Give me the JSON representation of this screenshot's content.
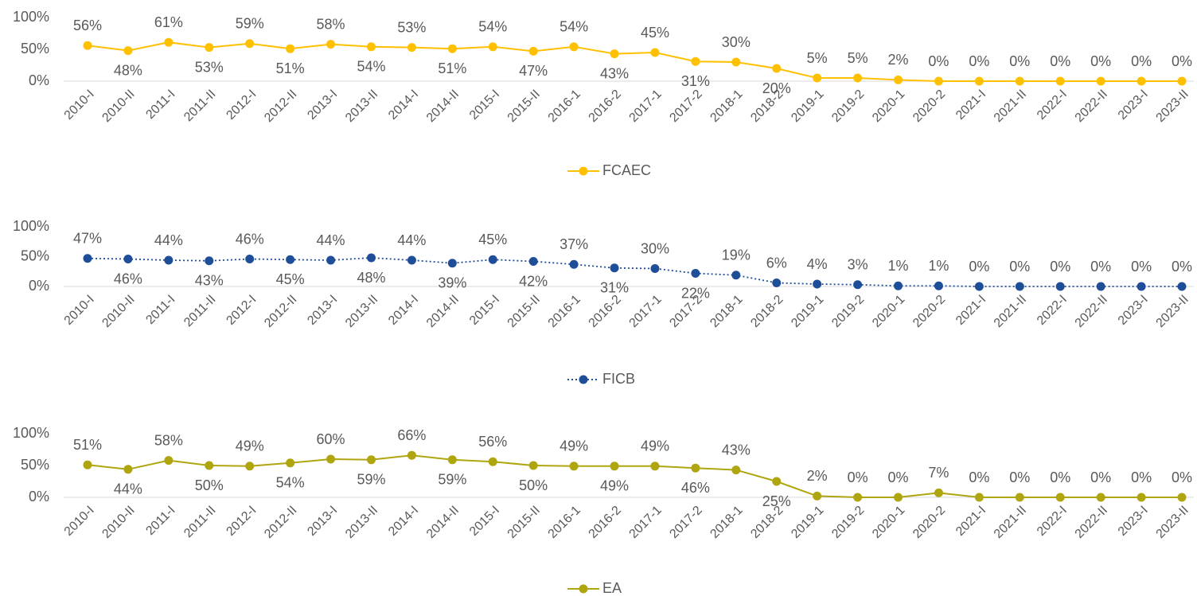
{
  "chart_data": [
    {
      "type": "line",
      "categories": [
        "2010-I",
        "2010-II",
        "2011-I",
        "2011-II",
        "2012-I",
        "2012-II",
        "2013-I",
        "2013-II",
        "2014-I",
        "2014-II",
        "2015-I",
        "2015-II",
        "2016-1",
        "2016-2",
        "2017-1",
        "2017-2",
        "2018-1",
        "2018-2",
        "2019-1",
        "2019-2",
        "2020-1",
        "2020-2",
        "2021-I",
        "2021-II",
        "2022-I",
        "2022-II",
        "2023-I",
        "2023-II"
      ],
      "series": [
        {
          "name": "FCAEC",
          "color": "#FFC000",
          "line_style": "solid",
          "values": [
            56,
            48,
            61,
            53,
            59,
            51,
            58,
            54,
            53,
            51,
            54,
            47,
            54,
            43,
            45,
            31,
            30,
            20,
            5,
            5,
            2,
            0,
            0,
            0,
            0,
            0,
            0,
            0
          ],
          "value_labels": [
            "56%",
            "48%",
            "61%",
            "53%",
            "59%",
            "51%",
            "58%",
            "54%",
            "53%",
            "51%",
            "54%",
            "47%",
            "54%",
            "43%",
            "45%",
            "31%",
            "30%",
            "20%",
            "5%",
            "5%",
            "2%",
            "0%",
            "0%",
            "0%",
            "0%",
            "0%",
            "0%",
            "0%"
          ]
        }
      ],
      "ylim": [
        0,
        100
      ],
      "yticks": [
        {
          "value": 0,
          "label": "0%"
        },
        {
          "value": 50,
          "label": "50%"
        },
        {
          "value": 100,
          "label": "100%"
        }
      ],
      "grid": false,
      "legend": "bottom"
    },
    {
      "type": "line",
      "categories": [
        "2010-I",
        "2010-II",
        "2011-I",
        "2011-II",
        "2012-I",
        "2012-II",
        "2013-I",
        "2013-II",
        "2014-I",
        "2014-II",
        "2015-I",
        "2015-II",
        "2016-1",
        "2016-2",
        "2017-1",
        "2017-2",
        "2018-1",
        "2018-2",
        "2019-1",
        "2019-2",
        "2020-1",
        "2020-2",
        "2021-I",
        "2021-II",
        "2022-I",
        "2022-II",
        "2023-I",
        "2023-II"
      ],
      "series": [
        {
          "name": "FICB",
          "color": "#1F4E99",
          "line_style": "dotted",
          "values": [
            47,
            46,
            44,
            43,
            46,
            45,
            44,
            48,
            44,
            39,
            45,
            42,
            37,
            31,
            30,
            22,
            19,
            6,
            4,
            3,
            1,
            1,
            0,
            0,
            0,
            0,
            0,
            0
          ],
          "value_labels": [
            "47%",
            "46%",
            "44%",
            "43%",
            "46%",
            "45%",
            "44%",
            "48%",
            "44%",
            "39%",
            "45%",
            "42%",
            "37%",
            "31%",
            "30%",
            "22%",
            "19%",
            "6%",
            "4%",
            "3%",
            "1%",
            "1%",
            "0%",
            "0%",
            "0%",
            "0%",
            "0%",
            "0%"
          ]
        }
      ],
      "ylim": [
        0,
        100
      ],
      "yticks": [
        {
          "value": 0,
          "label": "0%"
        },
        {
          "value": 50,
          "label": "50%"
        },
        {
          "value": 100,
          "label": "100%"
        }
      ],
      "grid": false,
      "legend": "bottom"
    },
    {
      "type": "line",
      "categories": [
        "2010-I",
        "2010-II",
        "2011-I",
        "2011-II",
        "2012-I",
        "2012-II",
        "2013-I",
        "2013-II",
        "2014-I",
        "2014-II",
        "2015-I",
        "2015-II",
        "2016-1",
        "2016-2",
        "2017-1",
        "2017-2",
        "2018-1",
        "2018-2",
        "2019-1",
        "2019-2",
        "2020-1",
        "2020-2",
        "2021-I",
        "2021-II",
        "2022-I",
        "2022-II",
        "2023-I",
        "2023-II"
      ],
      "series": [
        {
          "name": "EA",
          "color": "#AFA50F",
          "line_style": "solid",
          "values": [
            51,
            44,
            58,
            50,
            49,
            54,
            60,
            59,
            66,
            59,
            56,
            50,
            49,
            49,
            49,
            46,
            43,
            25,
            2,
            0,
            0,
            7,
            0,
            0,
            0,
            0,
            0,
            0
          ],
          "value_labels": [
            "51%",
            "44%",
            "58%",
            "50%",
            "49%",
            "54%",
            "60%",
            "59%",
            "66%",
            "59%",
            "56%",
            "50%",
            "49%",
            "49%",
            "49%",
            "46%",
            "43%",
            "25%",
            "2%",
            "0%",
            "0%",
            "7%",
            "0%",
            "0%",
            "0%",
            "0%",
            "0%",
            "0%"
          ]
        }
      ],
      "ylim": [
        0,
        100
      ],
      "yticks": [
        {
          "value": 0,
          "label": "0%"
        },
        {
          "value": 50,
          "label": "50%"
        },
        {
          "value": 100,
          "label": "100%"
        }
      ],
      "grid": false,
      "legend": "bottom"
    }
  ]
}
